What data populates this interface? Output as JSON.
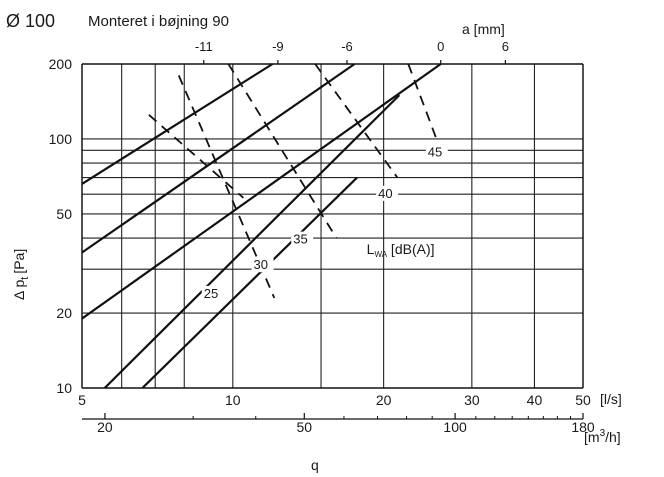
{
  "header": {
    "diameter": "Ø 100",
    "mounting": "Monteret i bøjning 90"
  },
  "chart_data": {
    "type": "line",
    "x_scale": "log",
    "y_scale": "log",
    "xlim": [
      5,
      50
    ],
    "ylim": [
      10,
      200
    ],
    "grid": true,
    "x_unit_label": "[l/s]",
    "x2_unit_label": "[m³/h]",
    "x2_unit_base": "[m",
    "x2_unit_sup": "3",
    "x2_unit_tail": "/h]",
    "xlabel": "q",
    "ylabel_prefix": "Δ p",
    "ylabel_sub": "t",
    "ylabel_unit": "[Pa]",
    "top_axis_label": "a [mm]",
    "xticks": [
      5,
      10,
      20,
      30,
      40,
      50
    ],
    "xtick_labels": [
      "5",
      "10",
      "20",
      "30",
      "40",
      "50"
    ],
    "xgrid": [
      5,
      6,
      7,
      8,
      10,
      15,
      20,
      30,
      40,
      50
    ],
    "x2ticks": [
      20,
      50,
      100,
      180
    ],
    "x2tick_labels": [
      "20",
      "50",
      "100",
      "180"
    ],
    "x2minor": [
      30,
      40,
      60,
      70,
      80,
      90,
      110,
      120,
      130,
      140,
      150,
      160,
      170
    ],
    "yticks": [
      10,
      20,
      50,
      100,
      200
    ],
    "ytick_labels": [
      "10",
      "20",
      "50",
      "100",
      "200"
    ],
    "ygrid": [
      10,
      20,
      30,
      40,
      50,
      60,
      70,
      80,
      90,
      100,
      200
    ],
    "sound_series": [
      {
        "name": "25",
        "points": [
          [
            6.6,
            10
          ],
          [
            17.7,
            70
          ]
        ],
        "label_at": [
          8.75,
          23
        ]
      },
      {
        "name": "30",
        "points": [
          [
            5.55,
            10
          ],
          [
            21.5,
            150
          ]
        ],
        "label_at": [
          11.0,
          30
        ]
      },
      {
        "name": "35",
        "points": [
          [
            5.0,
            19
          ],
          [
            26.0,
            200
          ]
        ],
        "label_at": [
          13.2,
          38
        ]
      },
      {
        "name": "40",
        "points": [
          [
            5.0,
            35
          ],
          [
            17.5,
            200
          ]
        ],
        "label_at": [
          19.5,
          58
        ]
      },
      {
        "name": "45",
        "points": [
          [
            5.0,
            66
          ],
          [
            12.0,
            200
          ]
        ],
        "label_at": [
          24.5,
          85
        ]
      }
    ],
    "damper_series": [
      {
        "name": "-11",
        "points": [
          [
            7.8,
            180
          ],
          [
            12.1,
            23
          ]
        ]
      },
      {
        "name": "-9",
        "points": [
          [
            9.8,
            200
          ],
          [
            16.1,
            40
          ]
        ]
      },
      {
        "name": "-6",
        "points": [
          [
            14.6,
            200
          ],
          [
            21.3,
            70
          ]
        ]
      },
      {
        "name": "0",
        "points": [
          [
            22.4,
            200
          ],
          [
            25.5,
            100
          ]
        ]
      },
      {
        "name": "-",
        "points": [
          [
            6.8,
            125
          ],
          [
            10.5,
            58
          ]
        ]
      }
    ],
    "top_ticks": [
      {
        "label": "-11",
        "x": 8.75
      },
      {
        "label": "-9",
        "x": 12.3
      },
      {
        "label": "-6",
        "x": 16.9
      },
      {
        "label": "0",
        "x": 26.0
      },
      {
        "label": "6",
        "x": 35.0
      }
    ],
    "lwa_label": {
      "prefix": "L",
      "sub": "WA",
      "suffix": " [dB(A)]",
      "x": 18.5,
      "y": 30
    }
  }
}
